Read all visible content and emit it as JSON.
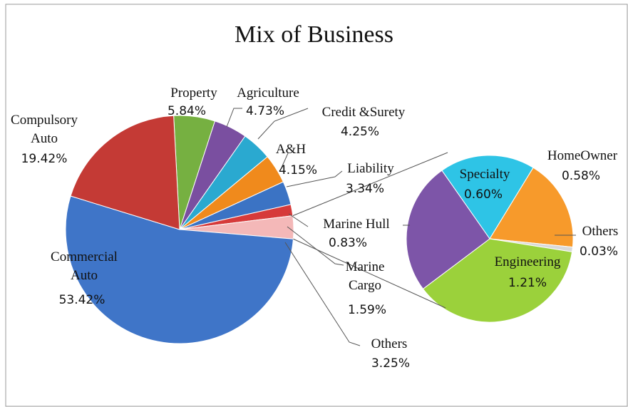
{
  "chart_data": {
    "type": "pie-of-pie",
    "title": "Mix of Business",
    "categories": [
      "Property",
      "Agriculture",
      "Credit &Surety",
      "A&H",
      "Liability",
      "Marine Cargo",
      "Others",
      "Commercial Auto",
      "Compulsory Auto"
    ],
    "values": [
      5.84,
      4.73,
      4.25,
      4.15,
      3.34,
      1.59,
      3.25,
      53.42,
      19.42
    ],
    "value_labels": [
      "5.84%",
      "4.73%",
      "4.25%",
      "4.15%",
      "3.34%",
      "1.59%",
      "3.25%",
      "53.42%",
      "19.42%"
    ],
    "colors": [
      "#76b041",
      "#7a4fa0",
      "#2aa9d0",
      "#f08a1c",
      "#3b73c4",
      "#d63a3a",
      "#f4b8b8",
      "#3f75c8",
      "#c43a35"
    ],
    "secondary": {
      "categories": [
        "Specialty",
        "HomeOwner",
        "Others",
        "Engineering",
        "Marine Hull"
      ],
      "values": [
        0.6,
        0.58,
        0.03,
        1.21,
        0.83
      ],
      "value_labels": [
        "0.60%",
        "0.58%",
        "0.03%",
        "1.21%",
        "0.83%"
      ],
      "colors": [
        "#2ec4e6",
        "#f79a2b",
        "#d9d9d9",
        "#9bd13b",
        "#7d55a8"
      ]
    }
  }
}
